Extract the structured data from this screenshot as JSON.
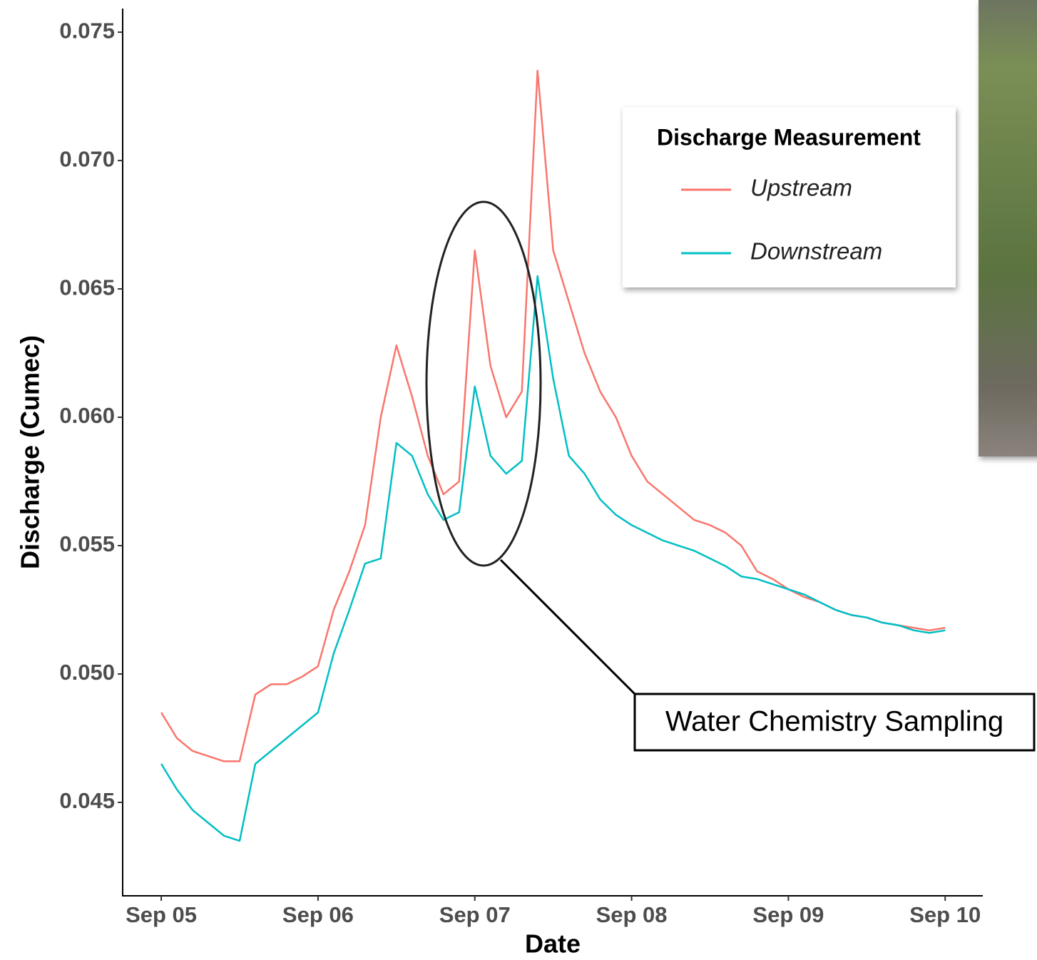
{
  "chart_data": {
    "type": "line",
    "y_label": "Discharge (Cumec)",
    "x_label": "Date",
    "legend_title": "Discharge Measurement",
    "annotation": "Water Chemistry Sampling",
    "x": [
      0,
      0.1,
      0.2,
      0.3,
      0.4,
      0.5,
      0.6,
      0.7,
      0.8,
      0.9,
      1,
      1.1,
      1.2,
      1.3,
      1.4,
      1.5,
      1.6,
      1.7,
      1.8,
      1.9,
      2,
      2.1,
      2.2,
      2.3,
      2.4,
      2.5,
      2.6,
      2.7,
      2.8,
      2.9,
      3,
      3.1,
      3.2,
      3.3,
      3.4,
      3.5,
      3.6,
      3.7,
      3.8,
      3.9,
      4,
      4.1,
      4.2,
      4.3,
      4.4,
      4.5,
      4.6,
      4.7,
      4.8,
      4.9,
      5
    ],
    "series": [
      {
        "name": "Upstream",
        "color": "#f8766d",
        "values": [
          0.0485,
          0.0475,
          0.047,
          0.0468,
          0.0466,
          0.0466,
          0.0492,
          0.0496,
          0.0496,
          0.0499,
          0.0503,
          0.0525,
          0.054,
          0.0558,
          0.06,
          0.0628,
          0.0608,
          0.0585,
          0.057,
          0.0575,
          0.0665,
          0.062,
          0.06,
          0.061,
          0.0735,
          0.0665,
          0.0645,
          0.0625,
          0.061,
          0.06,
          0.0585,
          0.0575,
          0.057,
          0.0565,
          0.056,
          0.0558,
          0.0555,
          0.055,
          0.054,
          0.0537,
          0.0533,
          0.053,
          0.0528,
          0.0525,
          0.0523,
          0.0522,
          0.052,
          0.0519,
          0.0518,
          0.0517,
          0.0518
        ]
      },
      {
        "name": "Downstream",
        "color": "#00bfc4",
        "values": [
          0.0465,
          0.0455,
          0.0447,
          0.0442,
          0.0437,
          0.0435,
          0.0465,
          0.047,
          0.0475,
          0.048,
          0.0485,
          0.0508,
          0.0525,
          0.0543,
          0.0545,
          0.059,
          0.0585,
          0.057,
          0.056,
          0.0563,
          0.0612,
          0.0585,
          0.0578,
          0.0583,
          0.0655,
          0.0615,
          0.0585,
          0.0578,
          0.0568,
          0.0562,
          0.0558,
          0.0555,
          0.0552,
          0.055,
          0.0548,
          0.0545,
          0.0542,
          0.0538,
          0.0537,
          0.0535,
          0.0533,
          0.0531,
          0.0528,
          0.0525,
          0.0523,
          0.0522,
          0.052,
          0.0519,
          0.0517,
          0.0516,
          0.0517
        ]
      }
    ],
    "xlim": [
      -0.246,
      5.24
    ],
    "xticks": [
      {
        "value": 0,
        "label": "Sep 05"
      },
      {
        "value": 1,
        "label": "Sep 06"
      },
      {
        "value": 2,
        "label": "Sep 07"
      },
      {
        "value": 3,
        "label": "Sep 08"
      },
      {
        "value": 4,
        "label": "Sep 09"
      },
      {
        "value": 5,
        "label": "Sep 10"
      }
    ],
    "ylim": [
      0.04136,
      0.07592
    ],
    "yticks": [
      0.045,
      {
        "value": 0.05,
        "label": "0.050"
      },
      0.055,
      {
        "value": 0.06,
        "label": "0.060"
      },
      0.065,
      {
        "value": 0.07,
        "label": "0.070"
      },
      0.075
    ],
    "grid": false
  }
}
